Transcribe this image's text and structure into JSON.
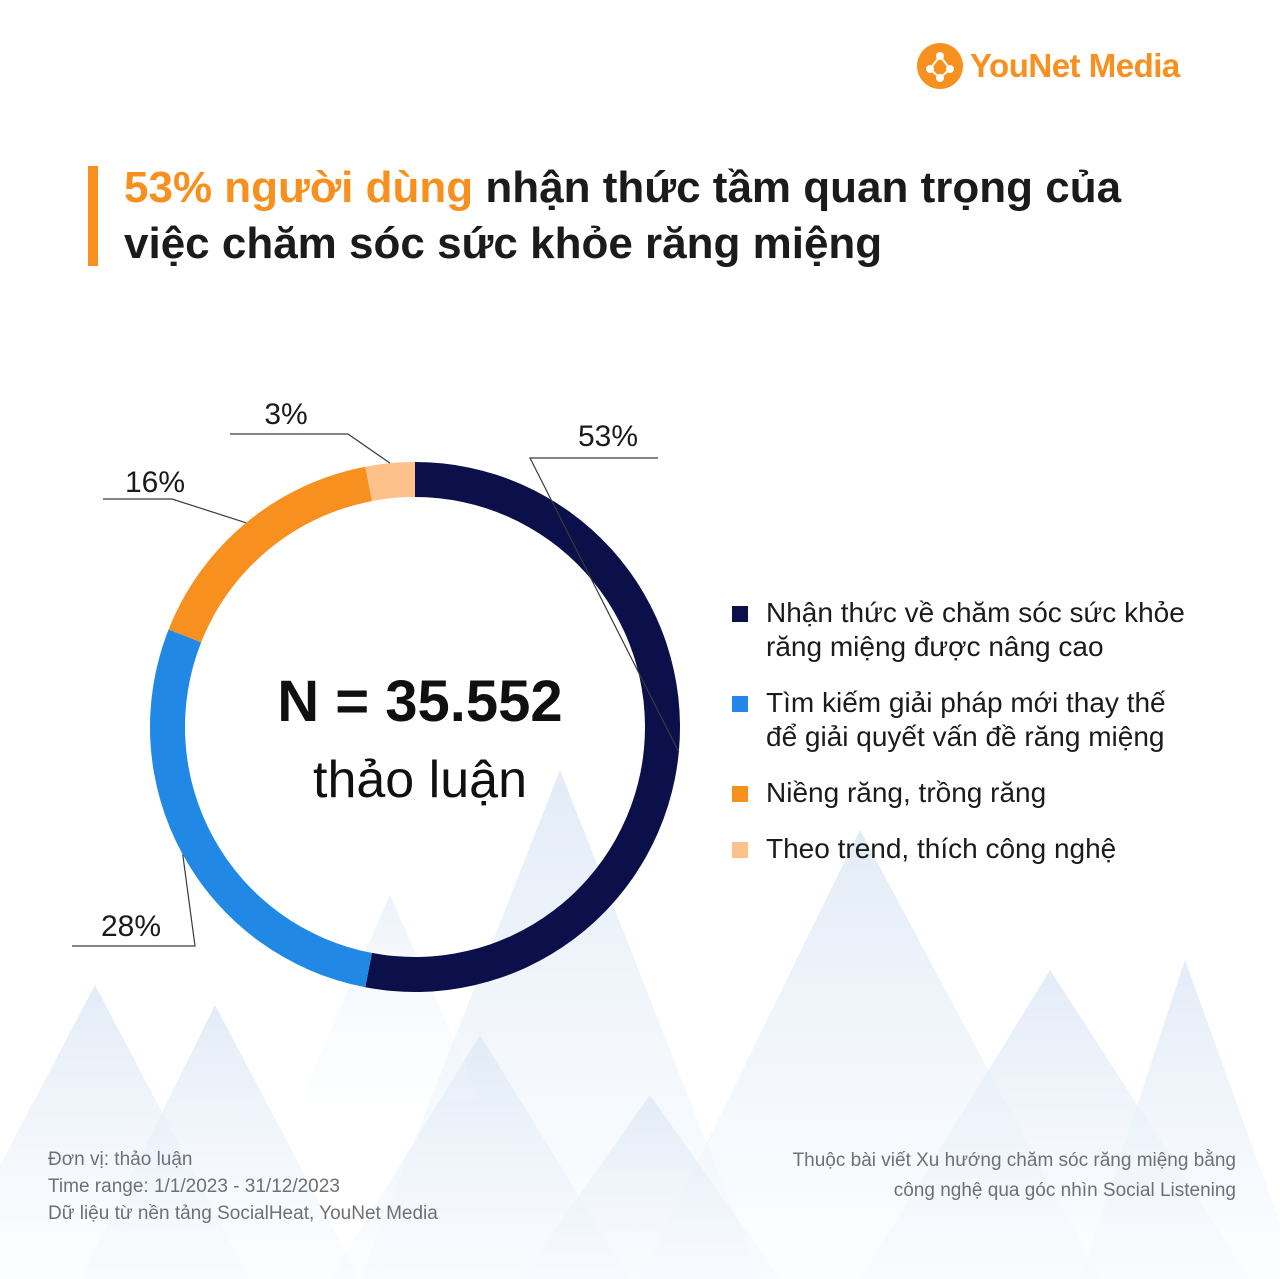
{
  "brand": {
    "logo_text_you": "YouNet",
    "logo_text_media": "Media",
    "accent_color": "#f7901e",
    "logo_icon": "network-dots-icon"
  },
  "title": {
    "highlight": "53% người dùng",
    "rest_line1": " nhận thức tầm quan trọng của",
    "line2": "việc chăm sóc sức khỏe răng miệng"
  },
  "center": {
    "n_text": "N = 35.552",
    "unit": "thảo luận"
  },
  "chart_data": {
    "type": "pie",
    "style": "donut",
    "title": "",
    "categories": [
      "Nhận thức về chăm sóc sức khỏe răng miệng được nâng cao",
      "Tìm kiếm giải pháp mới thay thế để giải quyết vấn đề răng miệng",
      "Niềng răng, trồng răng",
      "Theo trend, thích công nghệ"
    ],
    "values": [
      53,
      28,
      16,
      3
    ],
    "data_labels": [
      "53%",
      "28%",
      "16%",
      "3%"
    ],
    "colors": [
      "#0b0f4a",
      "#2188e6",
      "#f7901e",
      "#fcc289"
    ],
    "legend_position": "right",
    "total_n": 35552
  },
  "legend": [
    {
      "line1": "Nhận thức về chăm sóc sức khỏe",
      "line2": "răng miệng được nâng cao"
    },
    {
      "line1": "Tìm kiếm giải pháp mới thay thế",
      "line2": "để giải quyết vấn đề răng miệng"
    },
    {
      "line1": "Niềng răng, trồng răng",
      "line2": ""
    },
    {
      "line1": "Theo trend, thích công nghệ",
      "line2": ""
    }
  ],
  "footer": {
    "unit": "Đơn vị: thảo luận",
    "time_range": "Time range: 1/1/2023 - 31/12/2023",
    "source": "Dữ liệu từ nền tảng SocialHeat, YouNet Media",
    "article_line1": "Thuộc bài viết Xu hướng chăm sóc răng miệng bằng",
    "article_line2": "công nghệ qua góc nhìn Social Listening"
  }
}
